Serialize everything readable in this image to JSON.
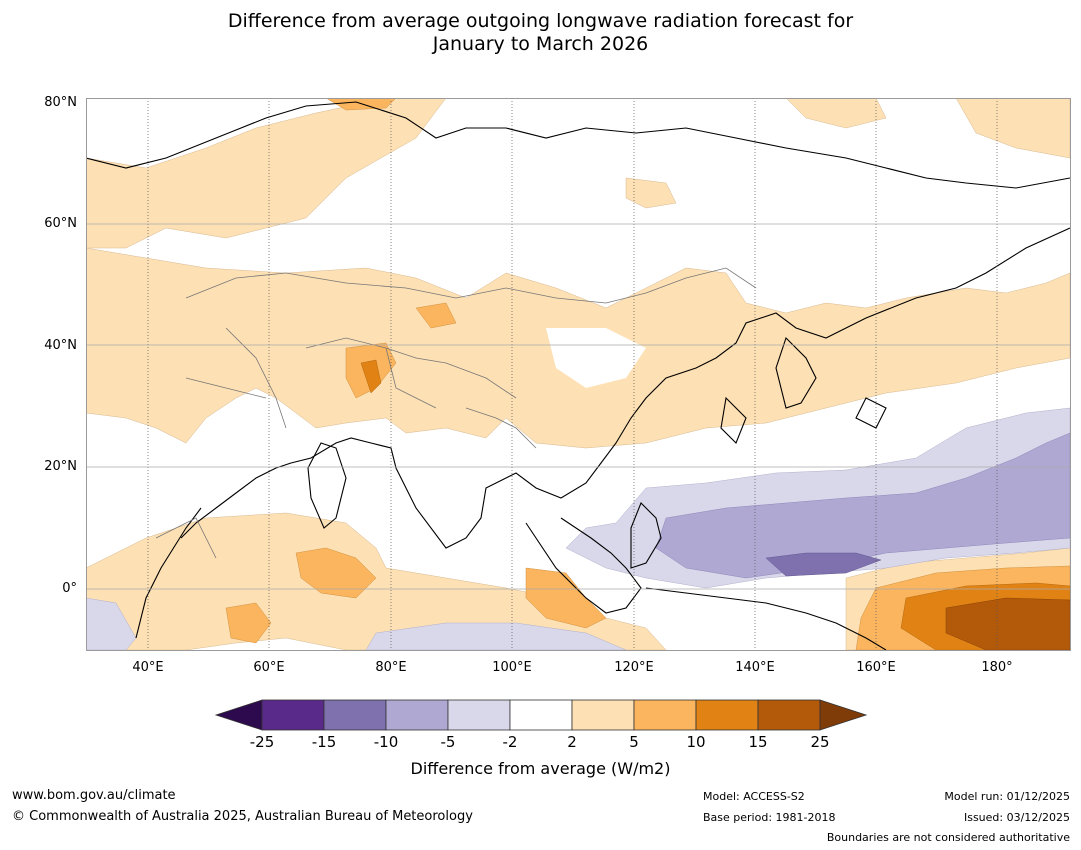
{
  "title_line1": "Difference from average outgoing longwave radiation forecast for",
  "title_line2": "January to March 2026",
  "lat_labels": [
    "80°N",
    "60°N",
    "40°N",
    "20°N",
    "0°"
  ],
  "lon_labels": [
    "40°E",
    "60°E",
    "80°E",
    "100°E",
    "120°E",
    "140°E",
    "160°E",
    "180°"
  ],
  "colorbar": {
    "title": "Difference from average (W/m2)",
    "ticks": [
      "-25",
      "-15",
      "-10",
      "-5",
      "-2",
      "2",
      "5",
      "10",
      "15",
      "25"
    ],
    "colors": {
      "below_min": "#2d0a4e",
      "b1": "#5a2a8a",
      "b2": "#7f70ae",
      "b3": "#afa8d2",
      "b4": "#d9d8ea",
      "b5": "#ffffff",
      "b6": "#fde0b4",
      "b7": "#fbb55e",
      "b8": "#e08214",
      "b9": "#b3590a",
      "above_max": "#7f3b08"
    }
  },
  "footer": {
    "url": "www.bom.gov.au/climate",
    "copyright": "© Commonwealth of Australia 2025, Australian Bureau of Meteorology",
    "model": "Model: ACCESS-S2",
    "base_period": "Base period: 1981-2018",
    "model_run": "Model run: 01/12/2025",
    "issued": "Issued: 03/12/2025",
    "disclaimer": "Boundaries are not considered authoritative"
  }
}
